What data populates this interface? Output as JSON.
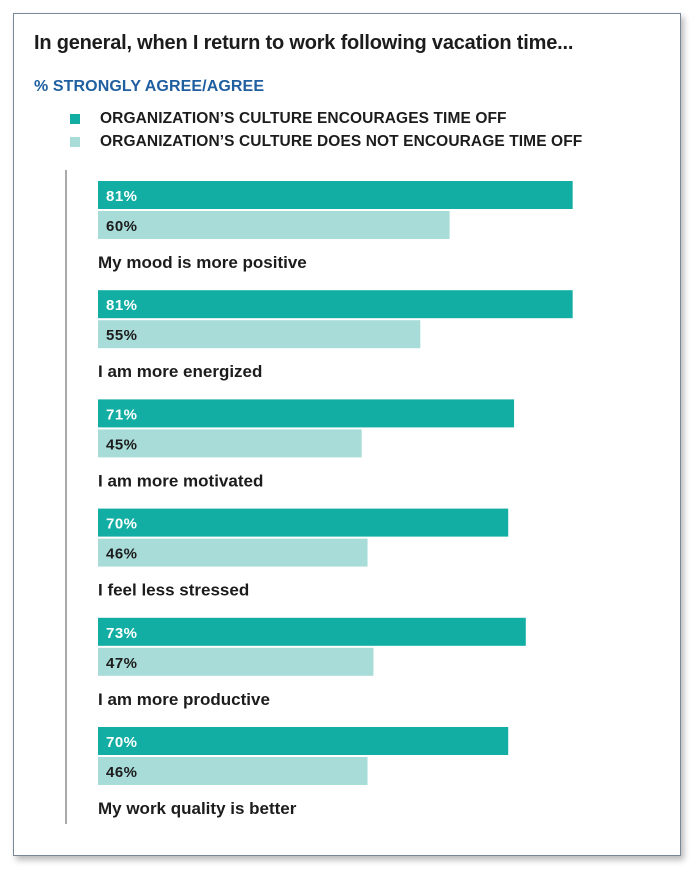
{
  "colors": {
    "encourages": "#12ada3",
    "not_encourages": "#a8dcd9",
    "axis": "#555555"
  },
  "chart_data": {
    "type": "bar",
    "orientation": "horizontal",
    "title": "In general, when I return to work following vacation time...",
    "subtitle": "% STRONGLY AGREE/AGREE",
    "legend_placement": "top-left",
    "xlim": [
      0,
      100
    ],
    "categories": [
      "My mood is more positive",
      "I am more energized",
      "I am more motivated",
      "I feel less stressed",
      "I am more productive",
      "My work quality is better"
    ],
    "series": [
      {
        "name": "ORGANIZATION’S CULTURE ENCOURAGES TIME OFF",
        "values": [
          81,
          81,
          71,
          70,
          73,
          70
        ],
        "labels": [
          "81%",
          "81%",
          "71%",
          "70%",
          "73%",
          "70%"
        ]
      },
      {
        "name": "ORGANIZATION’S CULTURE DOES NOT ENCOURAGE TIME OFF",
        "values": [
          60,
          55,
          45,
          46,
          47,
          46
        ],
        "labels": [
          "60%",
          "55%",
          "45%",
          "46%",
          "47%",
          "46%"
        ]
      }
    ]
  }
}
